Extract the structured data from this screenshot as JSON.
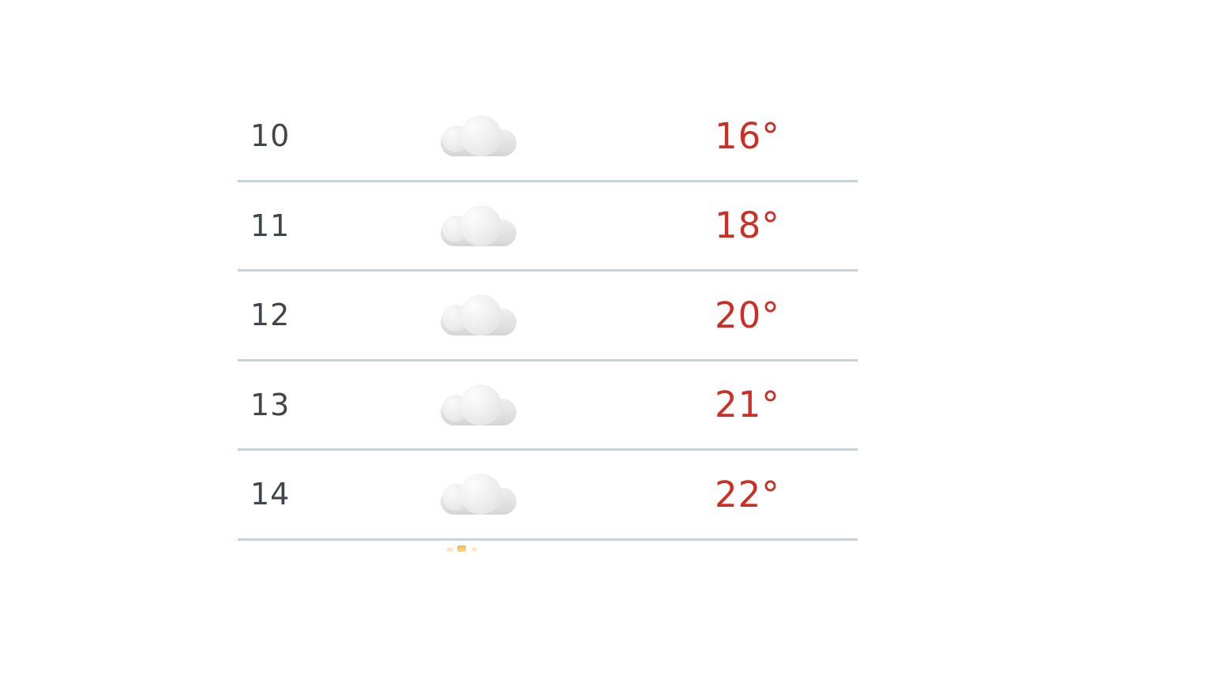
{
  "theme": {
    "background": "#ffffff",
    "hour_color": "#41464c",
    "temperature_color": "#cc2f26",
    "divider_color": "#c6d3db",
    "cloud_light": "#fcfcfc",
    "cloud_dark": "#d8d8d8",
    "sun_color": "#f5ba45"
  },
  "hourly_forecast": {
    "rows": [
      {
        "hour": "10",
        "condition": "cloudy",
        "temperature": "16°"
      },
      {
        "hour": "11",
        "condition": "cloudy",
        "temperature": "18°"
      },
      {
        "hour": "12",
        "condition": "cloudy",
        "temperature": "20°"
      },
      {
        "hour": "13",
        "condition": "cloudy",
        "temperature": "21°"
      },
      {
        "hour": "14",
        "condition": "cloudy",
        "temperature": "22°"
      }
    ],
    "next_row_peek_icon": "sun"
  }
}
